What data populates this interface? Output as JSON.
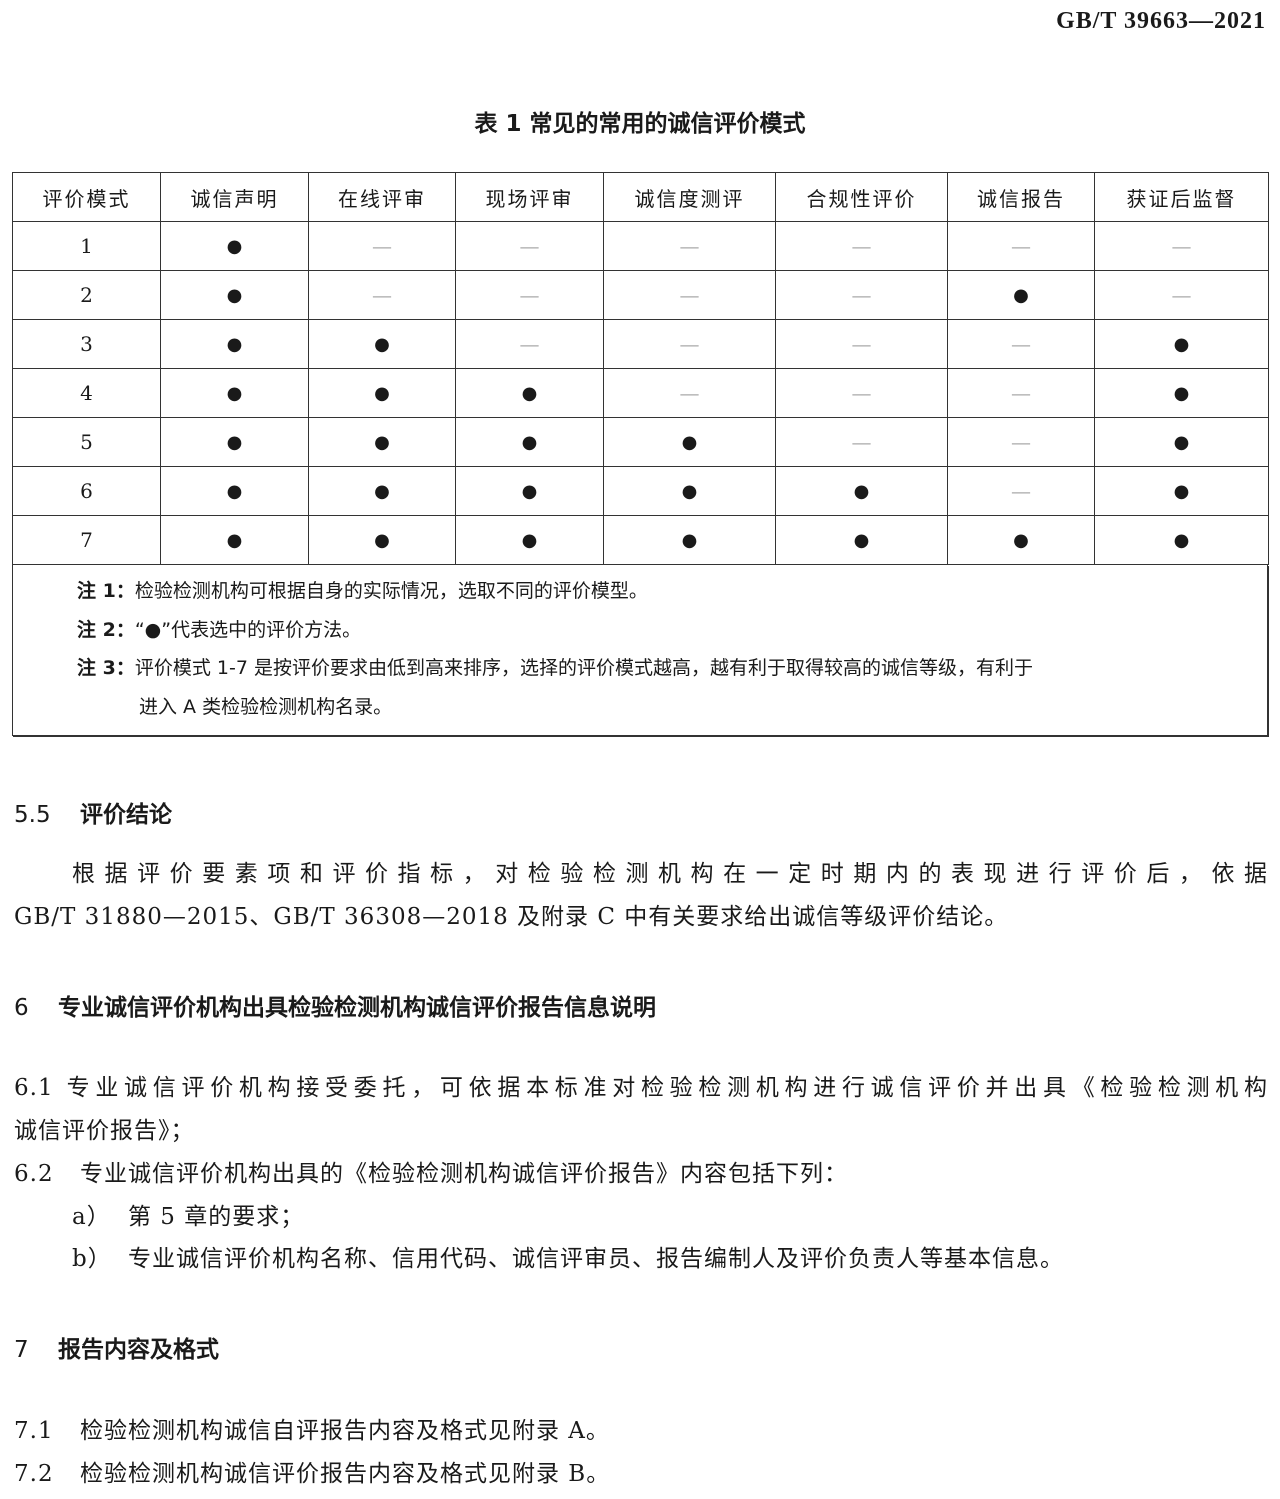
{
  "header": {
    "standard_code": "GB/T 39663—2021"
  },
  "table": {
    "title": "表 1  常见的常用的诚信评价模式",
    "columns": [
      "评价模式",
      "诚信声明",
      "在线评审",
      "现场评审",
      "诚信度测评",
      "合规性评价",
      "诚信报告",
      "获证后监督"
    ],
    "rows": [
      [
        "1",
        "●",
        "—",
        "—",
        "—",
        "—",
        "—",
        "—"
      ],
      [
        "2",
        "●",
        "—",
        "—",
        "—",
        "—",
        "●",
        "—"
      ],
      [
        "3",
        "●",
        "●",
        "—",
        "—",
        "—",
        "—",
        "●"
      ],
      [
        "4",
        "●",
        "●",
        "●",
        "—",
        "—",
        "—",
        "●"
      ],
      [
        "5",
        "●",
        "●",
        "●",
        "●",
        "—",
        "—",
        "●"
      ],
      [
        "6",
        "●",
        "●",
        "●",
        "●",
        "●",
        "—",
        "●"
      ],
      [
        "7",
        "●",
        "●",
        "●",
        "●",
        "●",
        "●",
        "●"
      ]
    ],
    "notes": [
      {
        "label": "注 1：",
        "text": "检验检测机构可根据自身的实际情况，选取不同的评价模型。"
      },
      {
        "label": "注 2：",
        "text": "“●”代表选中的评价方法。"
      },
      {
        "label": "注 3：",
        "text": "评价模式 1-7 是按评价要求由低到高来排序，选择的评价模式越高，越有利于取得较高的诚信等级，有利于",
        "cont": "进入 A 类检验检测机构名录。"
      }
    ]
  },
  "sections": {
    "s55": {
      "num": "5.5",
      "title": "评价结论",
      "p1": "根据评价要素项和评价指标，对检验检测机构在一定时期内的表现进行评价后，依据",
      "p2": "GB/T 31880—2015、GB/T 36308—2018 及附录 C 中有关要求给出诚信等级评价结论。"
    },
    "s6": {
      "num": "6",
      "title": "专业诚信评价机构出具检验检测机构诚信评价报告信息说明"
    },
    "s61": {
      "num": "6.1",
      "l1": "专业诚信评价机构接受委托，可依据本标准对检验检测机构进行诚信评价并出具《检验检测机构",
      "l2": "诚信评价报告》；"
    },
    "s62": {
      "num": "6.2",
      "text": "专业诚信评价机构出具的《检验检测机构诚信评价报告》内容包括下列：",
      "a_label": "a）",
      "a": "第 5 章的要求；",
      "b_label": "b）",
      "b": "专业诚信评价机构名称、信用代码、诚信评审员、报告编制人及评价负责人等基本信息。"
    },
    "s7": {
      "num": "7",
      "title": "报告内容及格式"
    },
    "s71": {
      "num": "7.1",
      "text": "检验检测机构诚信自评报告内容及格式见附录 A。"
    },
    "s72": {
      "num": "7.2",
      "text": "检验检测机构诚信评价报告内容及格式见附录 B。"
    }
  }
}
